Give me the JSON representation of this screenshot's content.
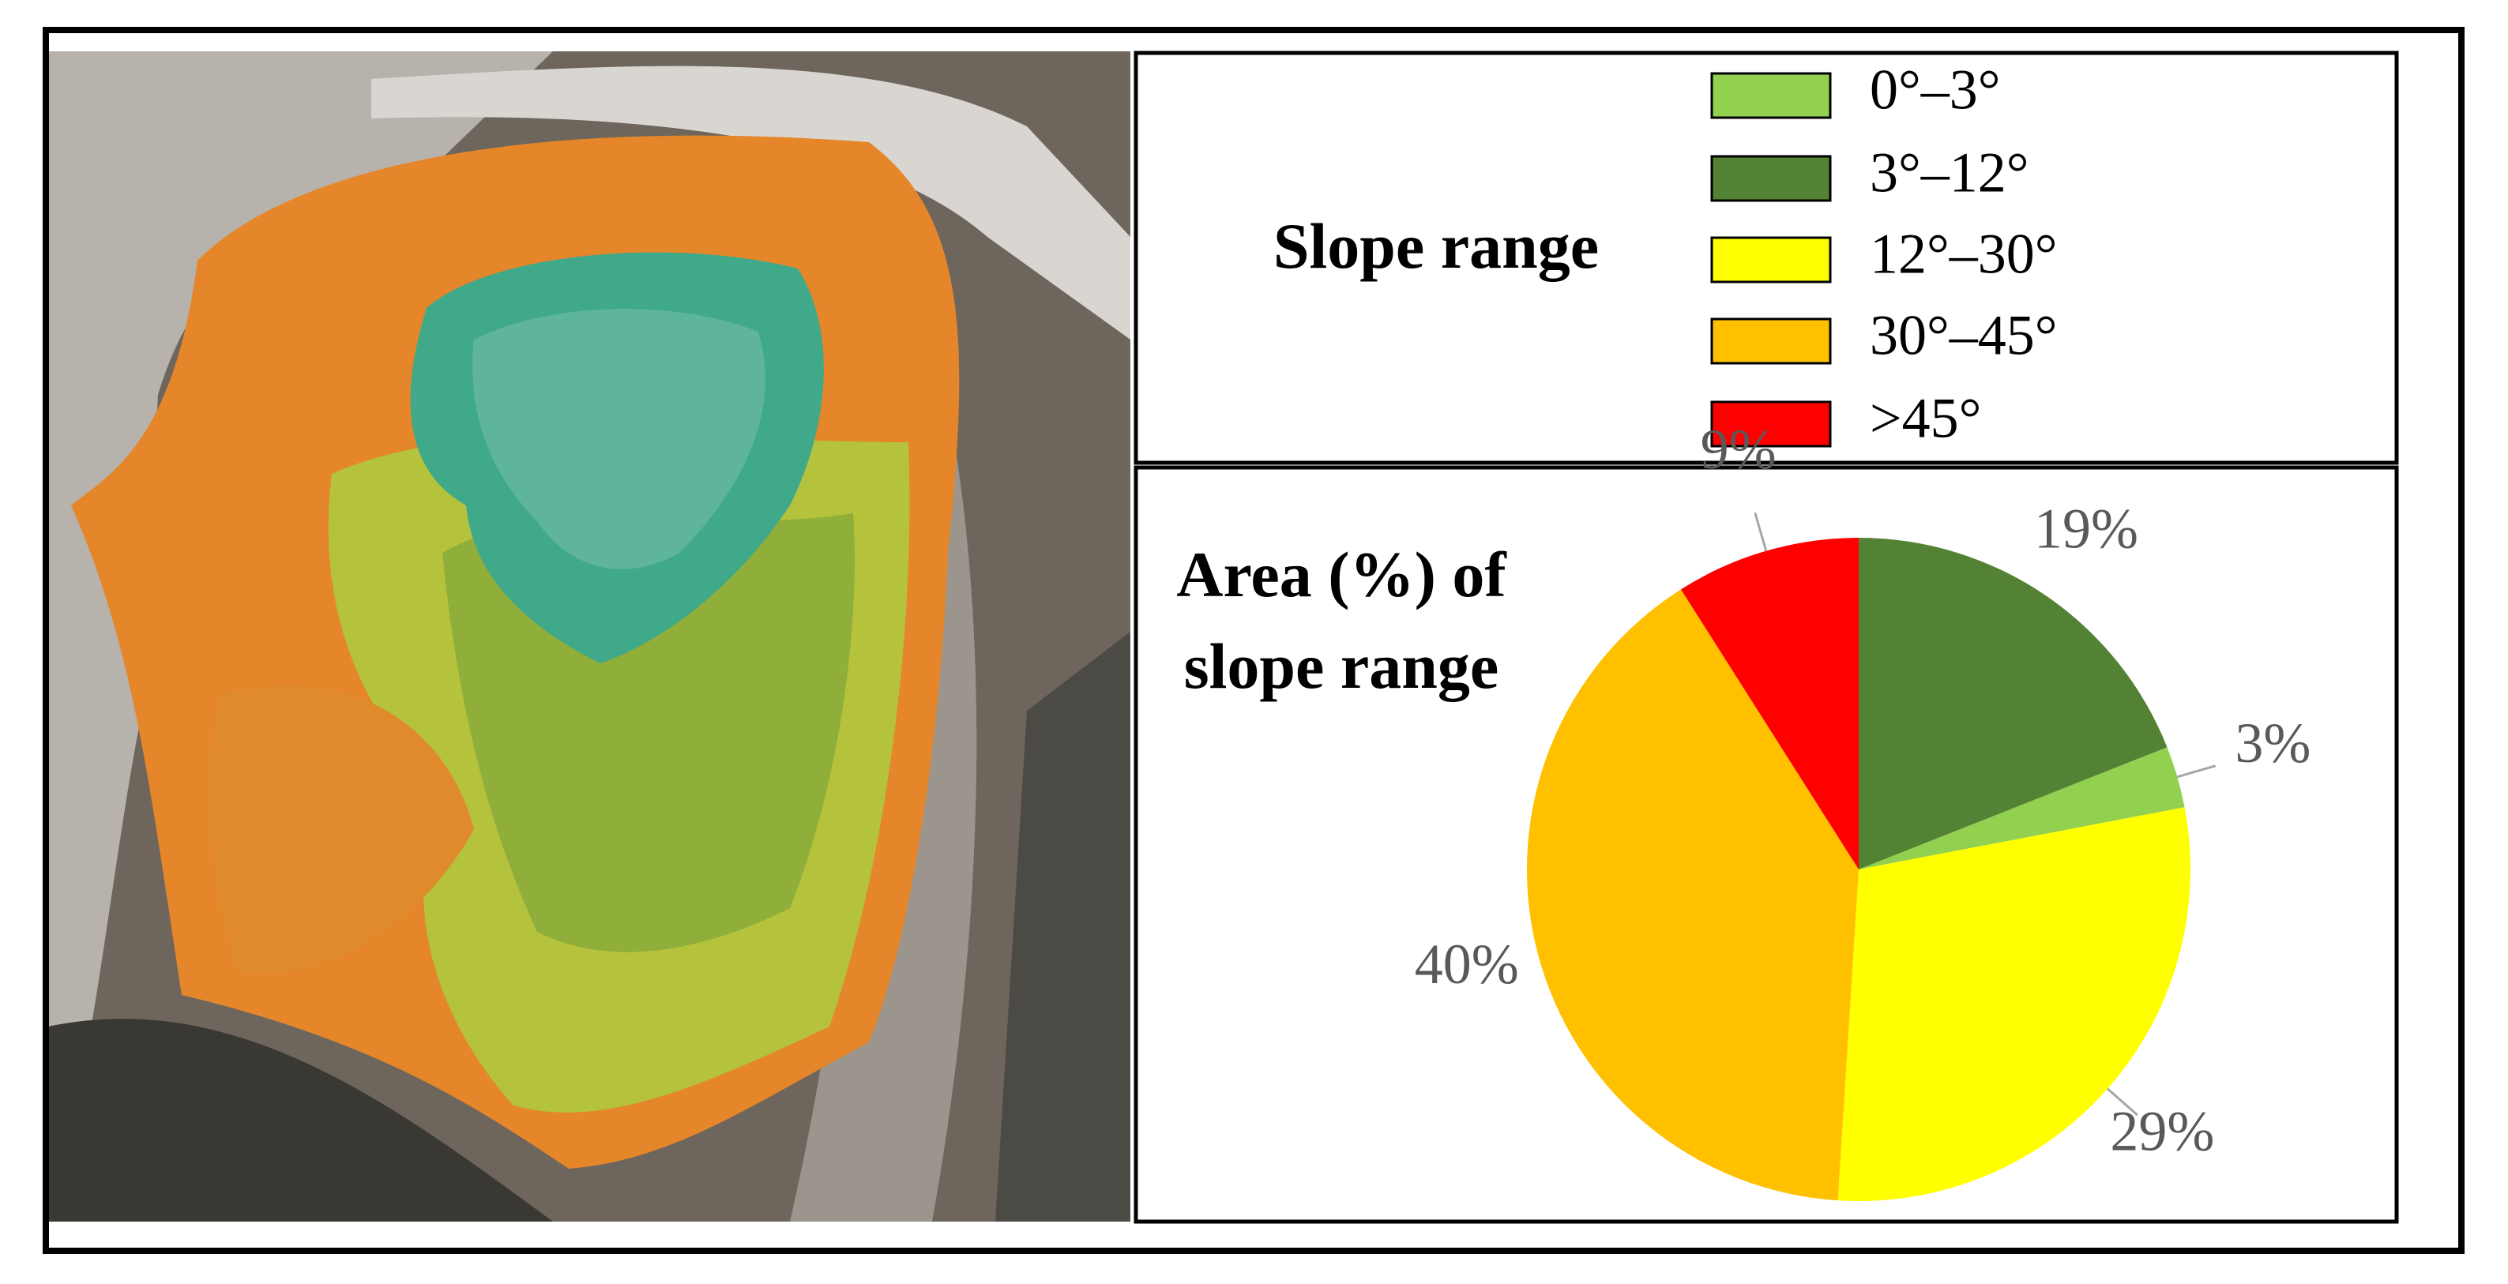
{
  "legend": {
    "title": "Slope range",
    "items": [
      {
        "label": "0°–3°",
        "color": "#92d050"
      },
      {
        "label": "3°–12°",
        "color": "#548235"
      },
      {
        "label": "12°–30°",
        "color": "#ffff00"
      },
      {
        "label": "30°–45°",
        "color": "#ffc000"
      },
      {
        "label": ">45°",
        "color": "#ff0000"
      }
    ]
  },
  "chart_data": {
    "type": "pie",
    "title": "Area (%) of slope range",
    "values": [
      19,
      3,
      29,
      40,
      9
    ],
    "value_labels": [
      "19%",
      "3%",
      "29%",
      "40%",
      "9%"
    ],
    "colors": [
      "#548235",
      "#92d050",
      "#ffff00",
      "#ffc000",
      "#ff0000"
    ]
  }
}
